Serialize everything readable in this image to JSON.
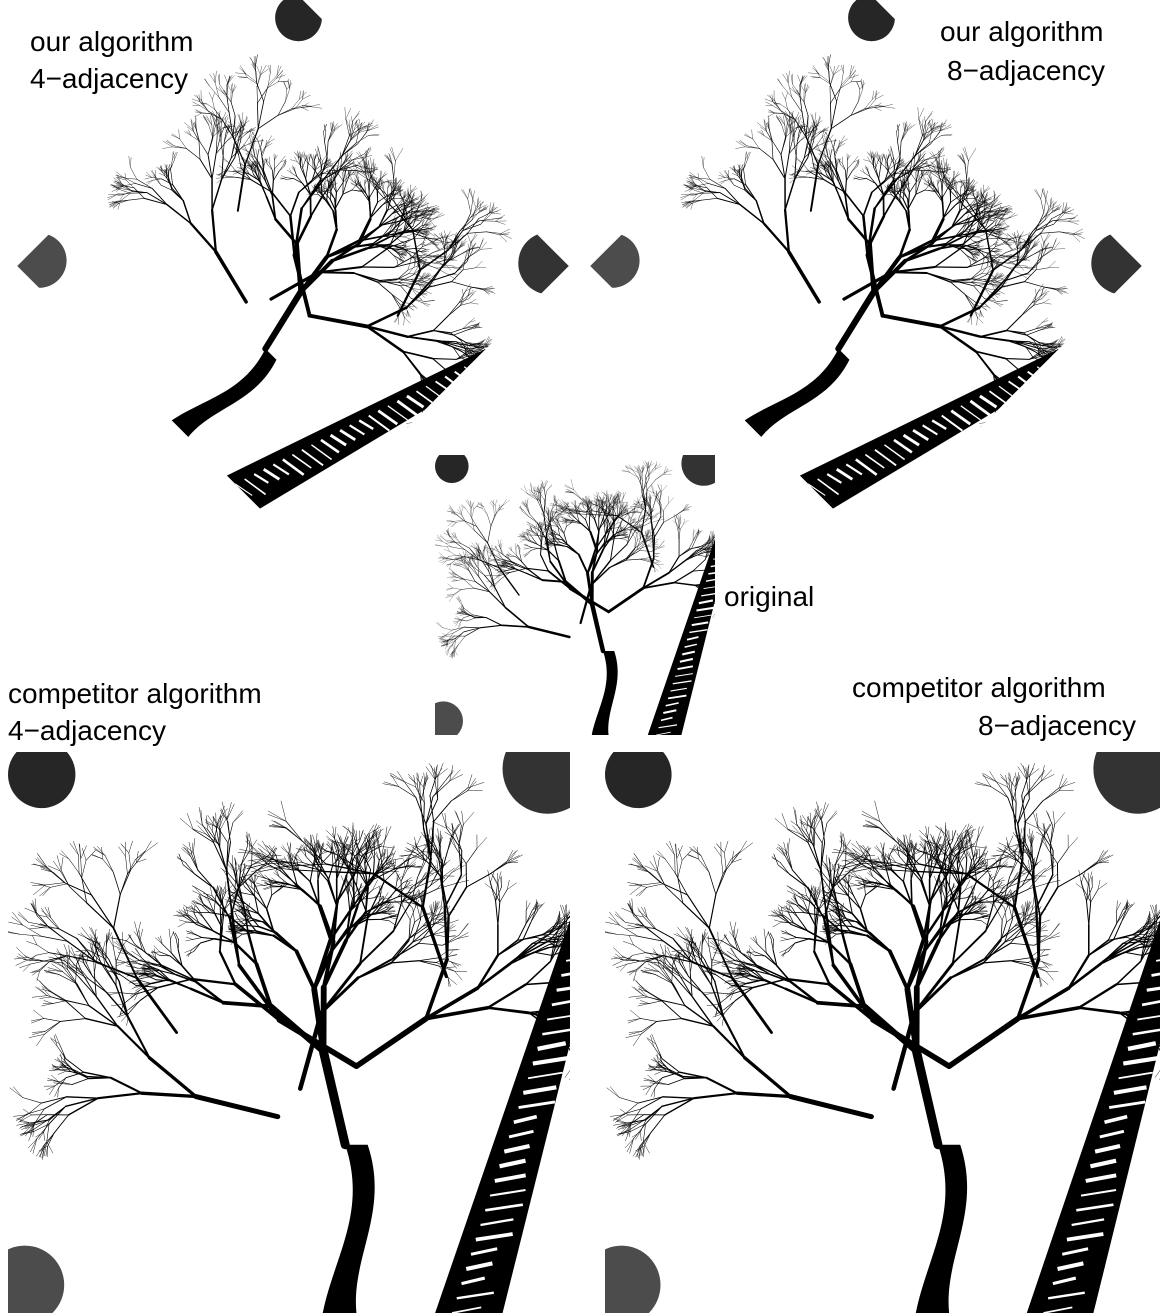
{
  "panels": [
    {
      "line1": "our algorithm",
      "line2": "4−adjacency"
    },
    {
      "line1": "our algorithm",
      "line2": "8−adjacency"
    },
    {
      "line1": "original"
    },
    {
      "line1": "competitor algorithm",
      "line2": "4−adjacency"
    },
    {
      "line1": "competitor algorithm",
      "line2": "8−adjacency"
    }
  ]
}
